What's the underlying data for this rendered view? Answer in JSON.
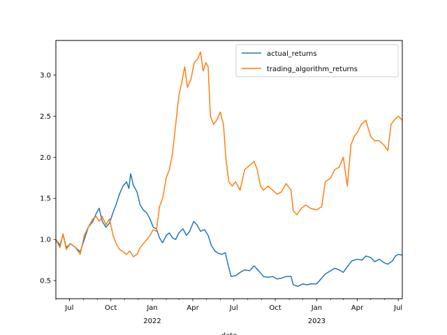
{
  "chart_data": {
    "type": "line",
    "title": "",
    "xlabel": "date",
    "ylabel": "",
    "x_axis_type": "date",
    "xlim": [
      "2021-06-01",
      "2023-07-10"
    ],
    "ylim": [
      0.28,
      3.42
    ],
    "grid": false,
    "legend_position": "top-right",
    "x_ticks": [
      {
        "date": "2021-07-01",
        "label": "Jul",
        "sub": ""
      },
      {
        "date": "2021-10-01",
        "label": "Oct",
        "sub": ""
      },
      {
        "date": "2022-01-01",
        "label": "Jan",
        "sub": "2022"
      },
      {
        "date": "2022-04-01",
        "label": "Apr",
        "sub": ""
      },
      {
        "date": "2022-07-01",
        "label": "Jul",
        "sub": ""
      },
      {
        "date": "2022-10-01",
        "label": "Oct",
        "sub": ""
      },
      {
        "date": "2023-01-01",
        "label": "Jan",
        "sub": "2023"
      },
      {
        "date": "2023-04-01",
        "label": "Apr",
        "sub": ""
      },
      {
        "date": "2023-07-01",
        "label": "Jul",
        "sub": ""
      }
    ],
    "y_ticks": [
      {
        "value": 0.5,
        "label": "0.5"
      },
      {
        "value": 1.0,
        "label": "1.0"
      },
      {
        "value": 1.5,
        "label": "1.5"
      },
      {
        "value": 2.0,
        "label": "2.0"
      },
      {
        "value": 2.5,
        "label": "2.5"
      },
      {
        "value": 3.0,
        "label": "3.0"
      }
    ],
    "series": [
      {
        "name": "actual_returns",
        "color": "#1f77b4",
        "points": [
          [
            "2021-06-01",
            1.0
          ],
          [
            "2021-06-10",
            0.93
          ],
          [
            "2021-06-17",
            1.06
          ],
          [
            "2021-06-24",
            0.9
          ],
          [
            "2021-07-03",
            0.95
          ],
          [
            "2021-07-15",
            0.9
          ],
          [
            "2021-07-25",
            0.85
          ],
          [
            "2021-08-03",
            1.0
          ],
          [
            "2021-08-12",
            1.15
          ],
          [
            "2021-08-22",
            1.22
          ],
          [
            "2021-08-30",
            1.32
          ],
          [
            "2021-09-05",
            1.38
          ],
          [
            "2021-09-12",
            1.22
          ],
          [
            "2021-09-20",
            1.15
          ],
          [
            "2021-09-28",
            1.2
          ],
          [
            "2021-10-06",
            1.33
          ],
          [
            "2021-10-13",
            1.43
          ],
          [
            "2021-10-20",
            1.55
          ],
          [
            "2021-10-28",
            1.65
          ],
          [
            "2021-11-05",
            1.7
          ],
          [
            "2021-11-10",
            1.62
          ],
          [
            "2021-11-14",
            1.8
          ],
          [
            "2021-11-20",
            1.66
          ],
          [
            "2021-11-28",
            1.58
          ],
          [
            "2021-12-05",
            1.42
          ],
          [
            "2021-12-12",
            1.36
          ],
          [
            "2021-12-20",
            1.32
          ],
          [
            "2021-12-27",
            1.25
          ],
          [
            "2022-01-03",
            1.15
          ],
          [
            "2022-01-10",
            1.13
          ],
          [
            "2022-01-17",
            1.02
          ],
          [
            "2022-01-24",
            0.96
          ],
          [
            "2022-02-01",
            1.05
          ],
          [
            "2022-02-08",
            1.08
          ],
          [
            "2022-02-15",
            1.02
          ],
          [
            "2022-02-22",
            1.0
          ],
          [
            "2022-03-01",
            1.08
          ],
          [
            "2022-03-10",
            1.13
          ],
          [
            "2022-03-18",
            1.05
          ],
          [
            "2022-03-25",
            1.1
          ],
          [
            "2022-04-03",
            1.22
          ],
          [
            "2022-04-10",
            1.18
          ],
          [
            "2022-04-18",
            1.1
          ],
          [
            "2022-04-27",
            1.12
          ],
          [
            "2022-05-05",
            1.05
          ],
          [
            "2022-05-12",
            0.93
          ],
          [
            "2022-05-20",
            0.86
          ],
          [
            "2022-05-28",
            0.83
          ],
          [
            "2022-06-05",
            0.82
          ],
          [
            "2022-06-12",
            0.84
          ],
          [
            "2022-06-18",
            0.7
          ],
          [
            "2022-06-25",
            0.55
          ],
          [
            "2022-07-05",
            0.56
          ],
          [
            "2022-07-15",
            0.6
          ],
          [
            "2022-07-25",
            0.63
          ],
          [
            "2022-08-05",
            0.62
          ],
          [
            "2022-08-15",
            0.68
          ],
          [
            "2022-08-25",
            0.62
          ],
          [
            "2022-09-05",
            0.55
          ],
          [
            "2022-09-15",
            0.54
          ],
          [
            "2022-09-25",
            0.55
          ],
          [
            "2022-10-05",
            0.52
          ],
          [
            "2022-10-15",
            0.53
          ],
          [
            "2022-10-25",
            0.55
          ],
          [
            "2022-11-05",
            0.55
          ],
          [
            "2022-11-10",
            0.45
          ],
          [
            "2022-11-20",
            0.43
          ],
          [
            "2022-12-01",
            0.46
          ],
          [
            "2022-12-10",
            0.45
          ],
          [
            "2022-12-20",
            0.46
          ],
          [
            "2023-01-01",
            0.46
          ],
          [
            "2023-01-12",
            0.53
          ],
          [
            "2023-01-20",
            0.58
          ],
          [
            "2023-02-01",
            0.62
          ],
          [
            "2023-02-10",
            0.65
          ],
          [
            "2023-02-20",
            0.63
          ],
          [
            "2023-03-01",
            0.6
          ],
          [
            "2023-03-10",
            0.67
          ],
          [
            "2023-03-20",
            0.74
          ],
          [
            "2023-04-01",
            0.76
          ],
          [
            "2023-04-12",
            0.75
          ],
          [
            "2023-04-20",
            0.8
          ],
          [
            "2023-05-01",
            0.78
          ],
          [
            "2023-05-10",
            0.73
          ],
          [
            "2023-05-20",
            0.76
          ],
          [
            "2023-05-30",
            0.72
          ],
          [
            "2023-06-08",
            0.7
          ],
          [
            "2023-06-18",
            0.74
          ],
          [
            "2023-06-25",
            0.8
          ],
          [
            "2023-07-01",
            0.82
          ],
          [
            "2023-07-10",
            0.81
          ]
        ]
      },
      {
        "name": "trading_algorithm_returns",
        "color": "#ff7f0e",
        "points": [
          [
            "2021-06-01",
            1.0
          ],
          [
            "2021-06-10",
            0.9
          ],
          [
            "2021-06-17",
            1.07
          ],
          [
            "2021-06-24",
            0.88
          ],
          [
            "2021-07-03",
            0.95
          ],
          [
            "2021-07-15",
            0.9
          ],
          [
            "2021-07-25",
            0.82
          ],
          [
            "2021-08-03",
            1.05
          ],
          [
            "2021-08-12",
            1.15
          ],
          [
            "2021-08-22",
            1.25
          ],
          [
            "2021-08-30",
            1.28
          ],
          [
            "2021-09-05",
            1.22
          ],
          [
            "2021-09-12",
            1.28
          ],
          [
            "2021-09-20",
            1.18
          ],
          [
            "2021-09-28",
            1.25
          ],
          [
            "2021-10-06",
            1.05
          ],
          [
            "2021-10-13",
            0.95
          ],
          [
            "2021-10-20",
            0.88
          ],
          [
            "2021-10-28",
            0.85
          ],
          [
            "2021-11-05",
            0.82
          ],
          [
            "2021-11-12",
            0.86
          ],
          [
            "2021-11-20",
            0.79
          ],
          [
            "2021-11-28",
            0.82
          ],
          [
            "2021-12-05",
            0.9
          ],
          [
            "2021-12-12",
            0.95
          ],
          [
            "2021-12-20",
            1.0
          ],
          [
            "2021-12-27",
            1.05
          ],
          [
            "2022-01-03",
            1.12
          ],
          [
            "2022-01-10",
            1.1
          ],
          [
            "2022-01-17",
            1.4
          ],
          [
            "2022-01-24",
            1.5
          ],
          [
            "2022-02-01",
            1.75
          ],
          [
            "2022-02-08",
            1.85
          ],
          [
            "2022-02-15",
            2.05
          ],
          [
            "2022-02-22",
            2.4
          ],
          [
            "2022-03-01",
            2.75
          ],
          [
            "2022-03-07",
            2.9
          ],
          [
            "2022-03-14",
            3.1
          ],
          [
            "2022-03-20",
            2.85
          ],
          [
            "2022-03-28",
            2.95
          ],
          [
            "2022-04-04",
            3.15
          ],
          [
            "2022-04-12",
            3.2
          ],
          [
            "2022-04-18",
            3.28
          ],
          [
            "2022-04-24",
            3.05
          ],
          [
            "2022-04-30",
            3.15
          ],
          [
            "2022-05-05",
            3.1
          ],
          [
            "2022-05-10",
            2.5
          ],
          [
            "2022-05-17",
            2.4
          ],
          [
            "2022-05-24",
            2.45
          ],
          [
            "2022-06-01",
            2.55
          ],
          [
            "2022-06-08",
            2.4
          ],
          [
            "2022-06-14",
            1.95
          ],
          [
            "2022-06-20",
            1.7
          ],
          [
            "2022-06-27",
            1.65
          ],
          [
            "2022-07-05",
            1.7
          ],
          [
            "2022-07-15",
            1.6
          ],
          [
            "2022-07-25",
            1.85
          ],
          [
            "2022-08-05",
            1.9
          ],
          [
            "2022-08-15",
            1.95
          ],
          [
            "2022-08-22",
            1.85
          ],
          [
            "2022-08-29",
            1.65
          ],
          [
            "2022-09-05",
            1.6
          ],
          [
            "2022-09-15",
            1.65
          ],
          [
            "2022-09-25",
            1.6
          ],
          [
            "2022-10-05",
            1.55
          ],
          [
            "2022-10-15",
            1.58
          ],
          [
            "2022-10-25",
            1.68
          ],
          [
            "2022-11-05",
            1.6
          ],
          [
            "2022-11-10",
            1.35
          ],
          [
            "2022-11-18",
            1.3
          ],
          [
            "2022-11-28",
            1.38
          ],
          [
            "2022-12-08",
            1.42
          ],
          [
            "2022-12-18",
            1.38
          ],
          [
            "2023-01-01",
            1.36
          ],
          [
            "2023-01-12",
            1.4
          ],
          [
            "2023-01-20",
            1.7
          ],
          [
            "2023-02-01",
            1.75
          ],
          [
            "2023-02-10",
            1.85
          ],
          [
            "2023-02-20",
            1.88
          ],
          [
            "2023-03-01",
            2.0
          ],
          [
            "2023-03-10",
            1.65
          ],
          [
            "2023-03-18",
            2.15
          ],
          [
            "2023-03-25",
            2.25
          ],
          [
            "2023-04-01",
            2.3
          ],
          [
            "2023-04-10",
            2.4
          ],
          [
            "2023-04-20",
            2.45
          ],
          [
            "2023-05-01",
            2.25
          ],
          [
            "2023-05-10",
            2.2
          ],
          [
            "2023-05-20",
            2.2
          ],
          [
            "2023-05-30",
            2.15
          ],
          [
            "2023-06-08",
            2.08
          ],
          [
            "2023-06-15",
            2.4
          ],
          [
            "2023-06-22",
            2.45
          ],
          [
            "2023-07-01",
            2.5
          ],
          [
            "2023-07-10",
            2.45
          ]
        ]
      }
    ]
  }
}
